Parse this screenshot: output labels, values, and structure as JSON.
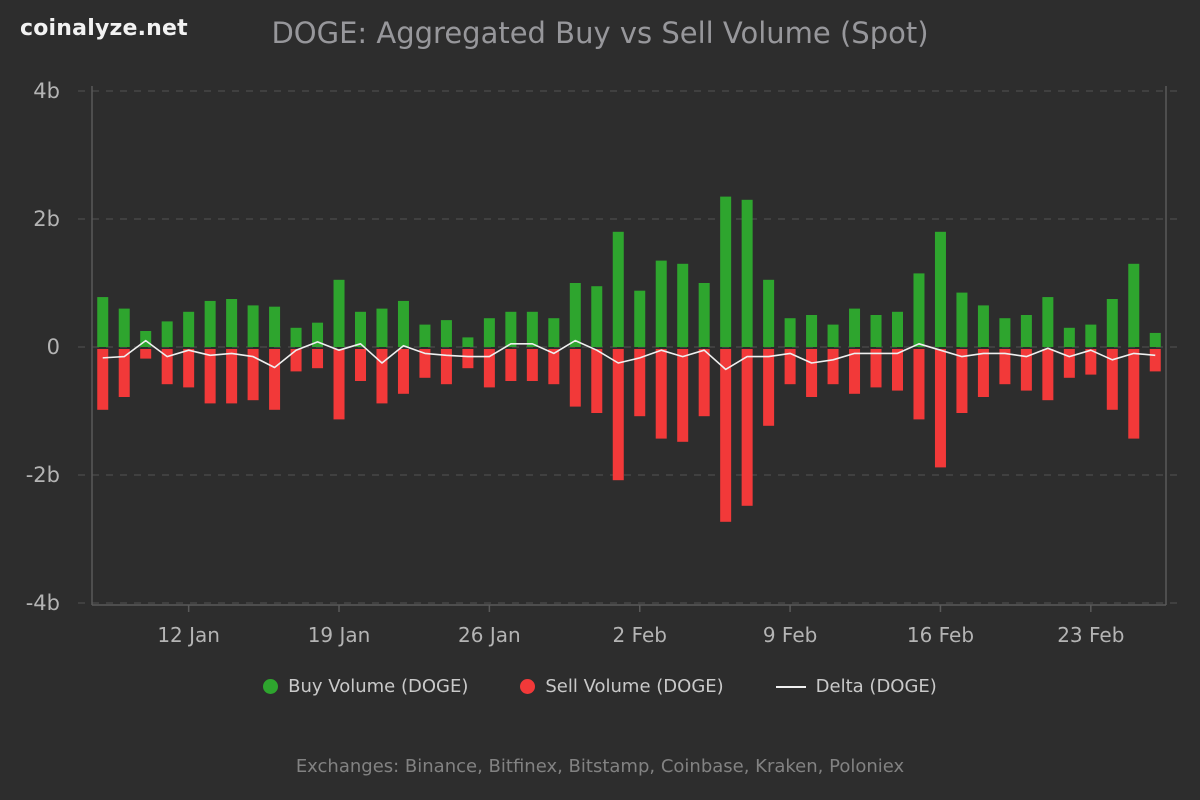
{
  "brand": {
    "logo_text": "coinalyze.net"
  },
  "header": {
    "title": "DOGE: Aggregated Buy vs Sell Volume (Spot)"
  },
  "chart_data": {
    "type": "bar",
    "title": "DOGE: Aggregated Buy vs Sell Volume (Spot)",
    "unit": "billions of DOGE",
    "grid": "dashed horizontal gridlines",
    "legend_position": "bottom",
    "ylim_billions": [
      -4,
      4
    ],
    "y_ticks": [
      {
        "value": 4,
        "label": "4b"
      },
      {
        "value": 2,
        "label": "2b"
      },
      {
        "value": 0,
        "label": "0"
      },
      {
        "value": -2,
        "label": "-2b"
      },
      {
        "value": -4,
        "label": "-4b"
      }
    ],
    "x_ticks": [
      {
        "index": 4,
        "label": "12 Jan"
      },
      {
        "index": 11,
        "label": "19 Jan"
      },
      {
        "index": 18,
        "label": "26 Jan"
      },
      {
        "index": 25,
        "label": "2 Feb"
      },
      {
        "index": 32,
        "label": "9 Feb"
      },
      {
        "index": 39,
        "label": "16 Feb"
      },
      {
        "index": 46,
        "label": "23 Feb"
      }
    ],
    "categories": [
      "8 Jan",
      "9 Jan",
      "10 Jan",
      "11 Jan",
      "12 Jan",
      "13 Jan",
      "14 Jan",
      "15 Jan",
      "16 Jan",
      "17 Jan",
      "18 Jan",
      "19 Jan",
      "20 Jan",
      "21 Jan",
      "22 Jan",
      "23 Jan",
      "24 Jan",
      "25 Jan",
      "26 Jan",
      "27 Jan",
      "28 Jan",
      "29 Jan",
      "30 Jan",
      "31 Jan",
      "1 Feb",
      "2 Feb",
      "3 Feb",
      "4 Feb",
      "5 Feb",
      "6 Feb",
      "7 Feb",
      "8 Feb",
      "9 Feb",
      "10 Feb",
      "11 Feb",
      "12 Feb",
      "13 Feb",
      "14 Feb",
      "15 Feb",
      "16 Feb",
      "17 Feb",
      "18 Feb",
      "19 Feb",
      "20 Feb",
      "21 Feb",
      "22 Feb",
      "23 Feb",
      "24 Feb",
      "25 Feb",
      "26 Feb"
    ],
    "series": [
      {
        "name": "Buy Volume (DOGE)",
        "type": "bar",
        "color": "#2ea52e",
        "values_billions": [
          0.78,
          0.6,
          0.25,
          0.4,
          0.55,
          0.72,
          0.75,
          0.65,
          0.63,
          0.3,
          0.38,
          1.05,
          0.55,
          0.6,
          0.72,
          0.35,
          0.42,
          0.15,
          0.45,
          0.55,
          0.55,
          0.45,
          1.0,
          0.95,
          1.8,
          0.88,
          1.35,
          1.3,
          1.0,
          2.35,
          2.3,
          1.05,
          0.45,
          0.5,
          0.35,
          0.6,
          0.5,
          0.55,
          1.15,
          1.8,
          0.85,
          0.65,
          0.45,
          0.5,
          0.78,
          0.3,
          0.35,
          0.75,
          1.3,
          0.22
        ]
      },
      {
        "name": "Sell Volume (DOGE)",
        "type": "bar",
        "color": "#f23939",
        "values_billions": [
          -0.95,
          -0.75,
          -0.15,
          -0.55,
          -0.6,
          -0.85,
          -0.85,
          -0.8,
          -0.95,
          -0.35,
          -0.3,
          -1.1,
          -0.5,
          -0.85,
          -0.7,
          -0.45,
          -0.55,
          -0.3,
          -0.6,
          -0.5,
          -0.5,
          -0.55,
          -0.9,
          -1.0,
          -2.05,
          -1.05,
          -1.4,
          -1.45,
          -1.05,
          -2.7,
          -2.45,
          -1.2,
          -0.55,
          -0.75,
          -0.55,
          -0.7,
          -0.6,
          -0.65,
          -1.1,
          -1.85,
          -1.0,
          -0.75,
          -0.55,
          -0.65,
          -0.8,
          -0.45,
          -0.4,
          -0.95,
          -1.4,
          -0.35
        ]
      },
      {
        "name": "Delta (DOGE)",
        "type": "line",
        "color": "#efefef",
        "values_billions": [
          -0.17,
          -0.15,
          0.1,
          -0.15,
          -0.05,
          -0.13,
          -0.1,
          -0.15,
          -0.32,
          -0.05,
          0.08,
          -0.05,
          0.05,
          -0.25,
          0.02,
          -0.1,
          -0.13,
          -0.15,
          -0.15,
          0.05,
          0.05,
          -0.1,
          0.1,
          -0.05,
          -0.25,
          -0.17,
          -0.05,
          -0.15,
          -0.05,
          -0.35,
          -0.15,
          -0.15,
          -0.1,
          -0.25,
          -0.2,
          -0.1,
          -0.1,
          -0.1,
          0.05,
          -0.05,
          -0.15,
          -0.1,
          -0.1,
          -0.15,
          -0.02,
          -0.15,
          -0.05,
          -0.2,
          -0.1,
          -0.13
        ]
      }
    ]
  },
  "colors": {
    "background": "#2d2d2d",
    "grid": "#474747",
    "axis": "#5a5a5a",
    "buy": "#2ea52e",
    "sell": "#f23939",
    "delta_line": "#efefef",
    "tick_text": "#b4b4b4",
    "title_text": "#97979b"
  },
  "footer": {
    "exchanges": "Exchanges: Binance, Bitfinex, Bitstamp, Coinbase, Kraken, Poloniex"
  }
}
